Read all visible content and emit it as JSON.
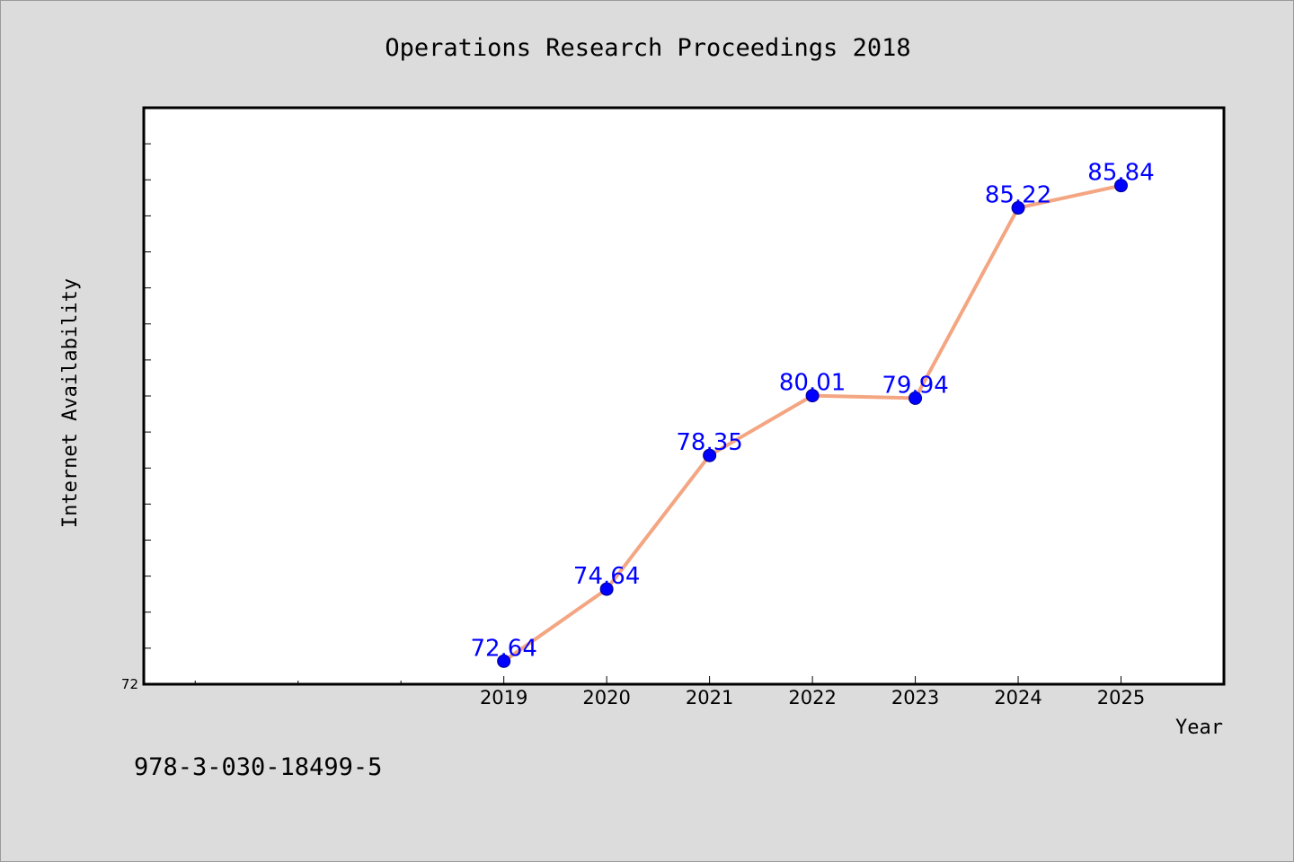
{
  "chart_data": {
    "type": "line",
    "title": "Operations Research Proceedings 2018",
    "xlabel": "Year",
    "ylabel": "Internet Availability",
    "x": [
      2019,
      2020,
      2021,
      2022,
      2023,
      2024,
      2025
    ],
    "xlim": [
      2015.5,
      2026
    ],
    "ylim": [
      72,
      88
    ],
    "y_tick_labels": [
      "72"
    ],
    "series": [
      {
        "values": [
          72.64,
          74.64,
          78.35,
          80.01,
          79.94,
          85.22,
          85.84
        ],
        "labels": [
          "72.64",
          "74.64",
          "78.35",
          "80.01",
          "79.94",
          "85.22",
          "85.84"
        ],
        "line_color": "#f4a582",
        "marker_color": "#0000ff"
      }
    ],
    "grid": false,
    "legend": "none"
  },
  "footnote": "978-3-030-18499-5"
}
